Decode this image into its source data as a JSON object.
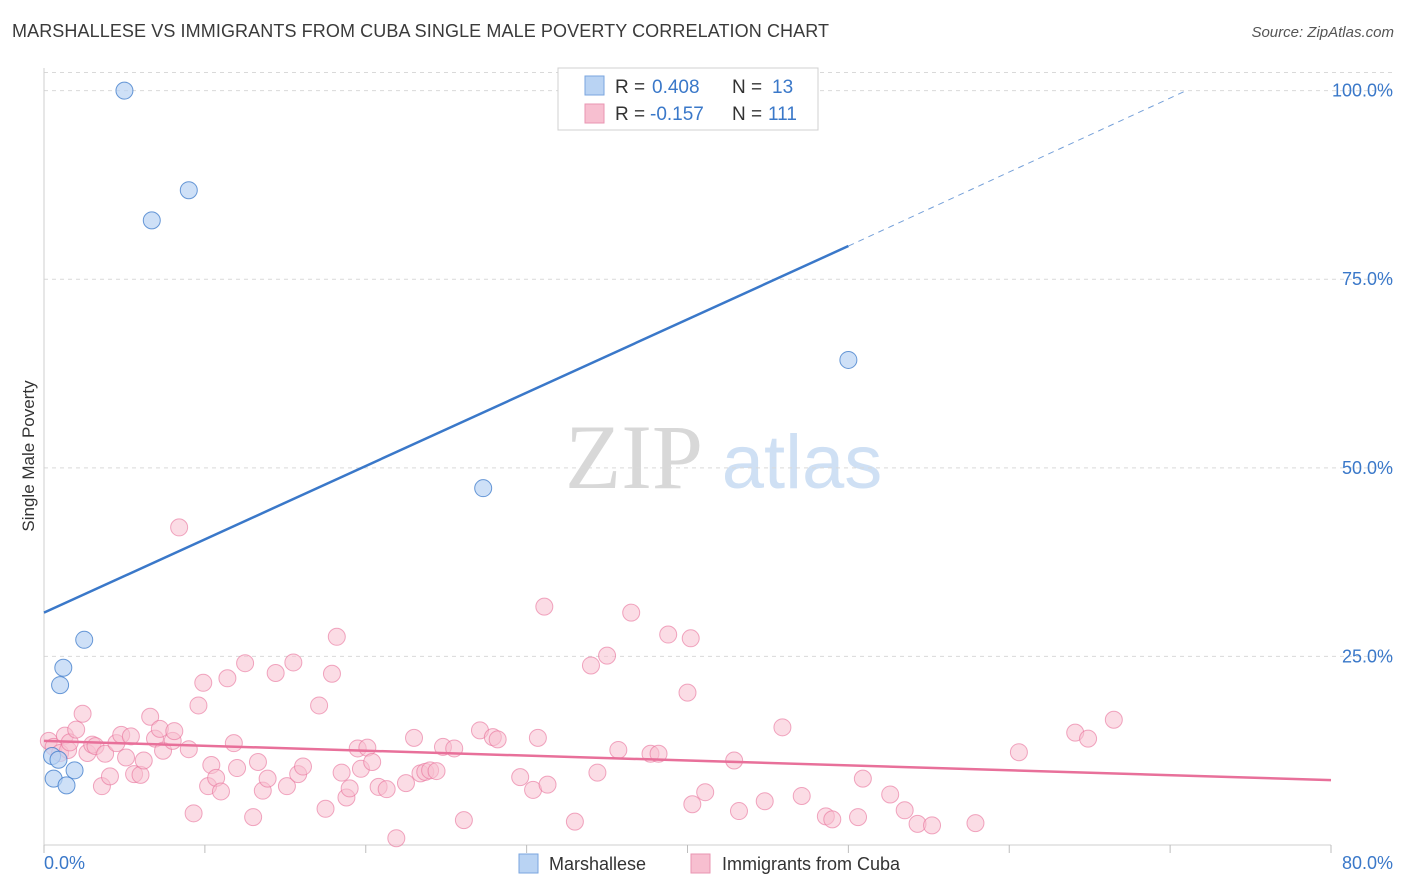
{
  "header": {
    "title": "MARSHALLESE VS IMMIGRANTS FROM CUBA SINGLE MALE POVERTY CORRELATION CHART",
    "source": "Source: ZipAtlas.com"
  },
  "watermark": {
    "zip": "ZIP",
    "atlas": "atlas"
  },
  "colors": {
    "blue": "#3a78c9",
    "blue_fill": "#b9d3f3",
    "pink": "#e8709a",
    "pink_fill": "#f7bfd0",
    "tick_label": "#3a78c9",
    "grid": "#d9d9d9"
  },
  "legend_top": {
    "rows": [
      {
        "r_label": "R = ",
        "r_value": "0.408",
        "n_label": "N = ",
        "n_value": "13"
      },
      {
        "r_label": "R = ",
        "r_value": "-0.157",
        "n_label": "N = ",
        "n_value": "111"
      }
    ]
  },
  "chart_data": {
    "type": "scatter",
    "title": "MARSHALLESE VS IMMIGRANTS FROM CUBA SINGLE MALE POVERTY CORRELATION CHART",
    "xlabel": "",
    "ylabel": "Single Male Poverty",
    "xlim": [
      0,
      80
    ],
    "ylim": [
      0,
      103
    ],
    "x_tick_labels": [
      "0.0%",
      "80.0%"
    ],
    "y_ticks": [
      25,
      50,
      75,
      100
    ],
    "y_tick_labels": [
      "25.0%",
      "50.0%",
      "75.0%",
      "100.0%"
    ],
    "grid": true,
    "legend_position": "bottom-center",
    "series": [
      {
        "name": "Marshallese",
        "color": "#3a78c9",
        "r": 0.408,
        "n": 13,
        "trend": {
          "x0": 0,
          "y0": 30.8,
          "x1": 50,
          "y1": 79.4,
          "dash_to_x": 71,
          "dash_to_y": 100
        },
        "points": [
          [
            5.0,
            100.0
          ],
          [
            9.0,
            86.8
          ],
          [
            6.7,
            82.8
          ],
          [
            50.0,
            64.3
          ],
          [
            27.3,
            47.3
          ],
          [
            2.5,
            27.2
          ],
          [
            1.2,
            23.5
          ],
          [
            1.0,
            21.2
          ],
          [
            0.5,
            11.8
          ],
          [
            0.9,
            11.3
          ],
          [
            1.9,
            9.9
          ],
          [
            0.6,
            8.8
          ],
          [
            1.4,
            7.9
          ]
        ]
      },
      {
        "name": "Immigrants from Cuba",
        "color": "#e8709a",
        "r": -0.157,
        "n": 111,
        "trend": {
          "x0": 0,
          "y0": 13.8,
          "x1": 80,
          "y1": 8.6
        },
        "points": [
          [
            0.3,
            13.8
          ],
          [
            0.6,
            13.0
          ],
          [
            1.0,
            12.2
          ],
          [
            1.3,
            14.5
          ],
          [
            1.5,
            12.6
          ],
          [
            1.6,
            13.6
          ],
          [
            2.0,
            15.3
          ],
          [
            2.4,
            17.4
          ],
          [
            2.7,
            12.2
          ],
          [
            3.0,
            13.3
          ],
          [
            3.2,
            13.1
          ],
          [
            3.6,
            7.8
          ],
          [
            3.8,
            12.1
          ],
          [
            4.1,
            9.1
          ],
          [
            4.5,
            13.5
          ],
          [
            4.8,
            14.6
          ],
          [
            5.1,
            11.6
          ],
          [
            5.4,
            14.4
          ],
          [
            5.6,
            9.4
          ],
          [
            6.0,
            9.3
          ],
          [
            6.2,
            11.2
          ],
          [
            6.6,
            17.0
          ],
          [
            6.9,
            14.1
          ],
          [
            7.2,
            15.4
          ],
          [
            7.4,
            12.5
          ],
          [
            8.0,
            13.8
          ],
          [
            8.1,
            15.1
          ],
          [
            8.4,
            42.1
          ],
          [
            9.0,
            12.7
          ],
          [
            9.3,
            4.2
          ],
          [
            9.6,
            18.5
          ],
          [
            9.9,
            21.5
          ],
          [
            10.2,
            7.8
          ],
          [
            10.4,
            10.6
          ],
          [
            10.7,
            8.9
          ],
          [
            11.0,
            7.1
          ],
          [
            11.4,
            22.1
          ],
          [
            11.8,
            13.5
          ],
          [
            12.0,
            10.2
          ],
          [
            12.5,
            24.1
          ],
          [
            13.0,
            3.7
          ],
          [
            13.3,
            11.0
          ],
          [
            13.6,
            7.2
          ],
          [
            13.9,
            8.8
          ],
          [
            14.4,
            22.8
          ],
          [
            15.1,
            7.8
          ],
          [
            15.5,
            24.2
          ],
          [
            15.8,
            9.4
          ],
          [
            16.1,
            10.4
          ],
          [
            17.1,
            18.5
          ],
          [
            17.5,
            4.8
          ],
          [
            17.9,
            22.7
          ],
          [
            18.2,
            27.6
          ],
          [
            18.5,
            9.6
          ],
          [
            18.8,
            6.3
          ],
          [
            19.0,
            7.5
          ],
          [
            19.5,
            12.8
          ],
          [
            19.7,
            10.1
          ],
          [
            20.1,
            12.9
          ],
          [
            20.4,
            11.0
          ],
          [
            20.8,
            7.7
          ],
          [
            21.3,
            7.4
          ],
          [
            21.9,
            0.9
          ],
          [
            22.5,
            8.2
          ],
          [
            23.0,
            14.2
          ],
          [
            23.4,
            9.5
          ],
          [
            23.7,
            9.7
          ],
          [
            24.0,
            9.9
          ],
          [
            24.4,
            9.8
          ],
          [
            24.8,
            13.0
          ],
          [
            25.5,
            12.8
          ],
          [
            26.1,
            3.3
          ],
          [
            27.1,
            15.2
          ],
          [
            27.9,
            14.3
          ],
          [
            28.2,
            14.0
          ],
          [
            29.6,
            9.0
          ],
          [
            30.4,
            7.3
          ],
          [
            30.7,
            14.2
          ],
          [
            31.1,
            31.6
          ],
          [
            31.3,
            8.0
          ],
          [
            33.0,
            3.1
          ],
          [
            34.0,
            23.8
          ],
          [
            34.4,
            9.6
          ],
          [
            35.0,
            25.1
          ],
          [
            35.7,
            12.6
          ],
          [
            36.5,
            30.8
          ],
          [
            37.7,
            12.1
          ],
          [
            38.2,
            12.1
          ],
          [
            38.8,
            27.9
          ],
          [
            40.0,
            20.2
          ],
          [
            40.2,
            27.4
          ],
          [
            40.3,
            5.4
          ],
          [
            41.1,
            7.0
          ],
          [
            42.9,
            11.2
          ],
          [
            43.2,
            4.5
          ],
          [
            44.8,
            5.8
          ],
          [
            45.9,
            15.6
          ],
          [
            47.1,
            6.5
          ],
          [
            48.6,
            3.8
          ],
          [
            49.0,
            3.4
          ],
          [
            50.6,
            3.7
          ],
          [
            50.9,
            8.8
          ],
          [
            52.6,
            6.7
          ],
          [
            53.5,
            4.6
          ],
          [
            54.3,
            2.8
          ],
          [
            55.2,
            2.6
          ],
          [
            57.9,
            2.9
          ],
          [
            60.6,
            12.3
          ],
          [
            64.1,
            14.9
          ],
          [
            64.9,
            14.1
          ],
          [
            66.5,
            16.6
          ]
        ]
      }
    ]
  },
  "legend_bottom": {
    "items": [
      "Marshallese",
      "Immigrants from Cuba"
    ]
  }
}
